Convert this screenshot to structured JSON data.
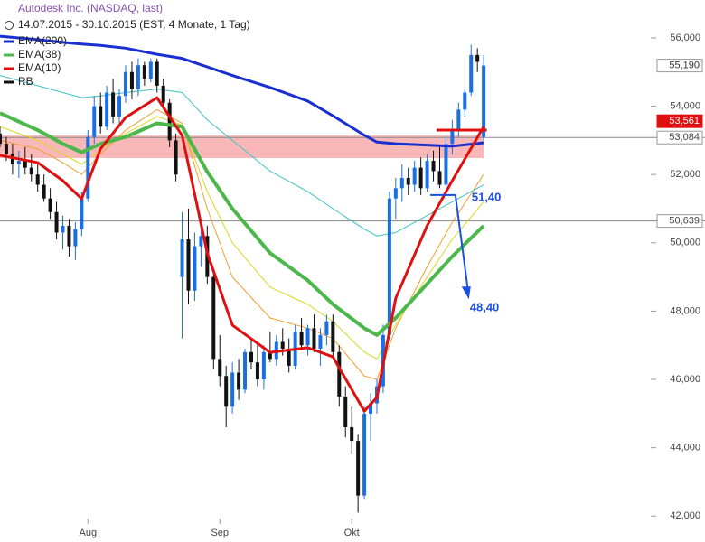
{
  "chart_data": {
    "type": "candlestick",
    "title": "Autodesk Inc. (NASDAQ, last)",
    "subtitle": "14.07.2015 - 30.10.2015 (EST, 4 Monate, 1 Tag)",
    "up_color": "#1a6fe6",
    "down_color": "#111111",
    "candles_name": "RB",
    "candles": [
      [
        53.2,
        53.4,
        52.8,
        52.9
      ],
      [
        52.9,
        53.1,
        52.4,
        52.6
      ],
      [
        52.6,
        52.9,
        52.0,
        52.3
      ],
      [
        52.3,
        52.7,
        51.9,
        52.4
      ],
      [
        52.4,
        52.8,
        52.0,
        52.2
      ],
      [
        52.2,
        52.6,
        51.8,
        52.0
      ],
      [
        52.0,
        52.3,
        51.5,
        51.7
      ],
      [
        51.7,
        52.0,
        51.2,
        51.3
      ],
      [
        51.3,
        51.6,
        50.7,
        50.9
      ],
      [
        50.9,
        51.2,
        50.1,
        50.3
      ],
      [
        50.3,
        50.8,
        49.8,
        50.5
      ],
      [
        50.5,
        50.7,
        49.6,
        49.9
      ],
      [
        49.9,
        50.6,
        49.5,
        50.4
      ],
      [
        50.4,
        51.5,
        50.2,
        51.3
      ],
      [
        51.3,
        53.3,
        51.2,
        53.1
      ],
      [
        53.1,
        54.3,
        52.9,
        54.0
      ],
      [
        54.0,
        54.4,
        53.2,
        53.4
      ],
      [
        53.4,
        54.6,
        53.3,
        54.4
      ],
      [
        54.4,
        54.8,
        53.5,
        53.7
      ],
      [
        53.7,
        54.5,
        53.4,
        54.3
      ],
      [
        54.3,
        55.2,
        54.1,
        55.0
      ],
      [
        55.0,
        55.3,
        54.2,
        54.5
      ],
      [
        54.5,
        55.4,
        54.3,
        55.2
      ],
      [
        55.2,
        55.3,
        54.6,
        54.8
      ],
      [
        54.8,
        55.4,
        54.7,
        55.3
      ],
      [
        55.3,
        55.4,
        54.4,
        54.6
      ],
      [
        54.6,
        54.8,
        53.9,
        54.1
      ],
      [
        54.1,
        54.2,
        52.8,
        53.0
      ],
      [
        53.0,
        53.2,
        51.8,
        52.0
      ],
      [
        49.0,
        50.9,
        47.2,
        50.1
      ],
      [
        50.1,
        51.0,
        48.2,
        48.6
      ],
      [
        48.6,
        50.3,
        48.3,
        49.9
      ],
      [
        49.9,
        50.6,
        49.3,
        50.2
      ],
      [
        50.2,
        50.5,
        48.8,
        49.0
      ],
      [
        49.0,
        49.2,
        46.3,
        46.6
      ],
      [
        46.6,
        47.3,
        45.8,
        46.1
      ],
      [
        46.1,
        46.4,
        44.6,
        45.2
      ],
      [
        45.2,
        46.5,
        45.0,
        46.2
      ],
      [
        46.2,
        46.6,
        45.4,
        45.7
      ],
      [
        45.7,
        46.9,
        45.6,
        46.8
      ],
      [
        46.8,
        47.2,
        46.3,
        46.5
      ],
      [
        46.5,
        47.1,
        45.8,
        46.0
      ],
      [
        46.0,
        47.0,
        45.7,
        46.8
      ],
      [
        46.8,
        47.4,
        46.5,
        46.6
      ],
      [
        46.6,
        47.3,
        46.4,
        47.1
      ],
      [
        47.1,
        47.5,
        46.7,
        46.9
      ],
      [
        46.9,
        47.2,
        46.2,
        46.4
      ],
      [
        46.4,
        47.6,
        46.3,
        47.4
      ],
      [
        47.4,
        47.8,
        46.9,
        47.0
      ],
      [
        47.0,
        47.6,
        46.7,
        47.5
      ],
      [
        47.5,
        47.9,
        46.8,
        46.9
      ],
      [
        46.9,
        47.5,
        46.4,
        47.3
      ],
      [
        47.3,
        47.9,
        47.0,
        47.7
      ],
      [
        47.7,
        47.9,
        46.6,
        46.8
      ],
      [
        46.8,
        47.0,
        45.2,
        45.5
      ],
      [
        45.5,
        45.8,
        44.3,
        44.6
      ],
      [
        44.6,
        45.2,
        43.8,
        44.2
      ],
      [
        44.2,
        44.4,
        42.1,
        42.6
      ],
      [
        42.6,
        45.2,
        42.5,
        45.0
      ],
      [
        45.0,
        45.6,
        44.2,
        45.3
      ],
      [
        45.3,
        46.0,
        45.0,
        45.8
      ],
      [
        45.8,
        47.6,
        45.6,
        47.3
      ],
      [
        47.3,
        51.5,
        47.2,
        51.3
      ],
      [
        51.3,
        51.9,
        50.7,
        51.6
      ],
      [
        51.6,
        52.3,
        51.2,
        51.9
      ],
      [
        51.9,
        52.2,
        51.4,
        51.7
      ],
      [
        51.7,
        52.4,
        51.5,
        52.2
      ],
      [
        52.2,
        52.5,
        51.4,
        51.6
      ],
      [
        51.6,
        52.6,
        51.5,
        52.4
      ],
      [
        52.4,
        52.7,
        51.8,
        52.1
      ],
      [
        52.1,
        52.8,
        51.6,
        51.7
      ],
      [
        51.7,
        53.1,
        51.6,
        52.9
      ],
      [
        52.9,
        53.6,
        52.6,
        53.3
      ],
      [
        53.3,
        54.1,
        53.1,
        53.9
      ],
      [
        53.9,
        54.5,
        53.7,
        54.4
      ],
      [
        54.4,
        55.8,
        54.3,
        55.5
      ],
      [
        55.5,
        55.7,
        55.0,
        55.3
      ],
      [
        53.1,
        55.5,
        53.0,
        55.19
      ]
    ],
    "x": [
      0,
      6,
      10,
      13,
      16,
      20,
      25,
      29,
      33,
      37,
      43,
      49,
      53,
      58,
      60,
      63,
      68,
      72,
      77
    ],
    "series": [
      {
        "name": "EMA(200)",
        "color": "#1a2fd0",
        "width": 3,
        "values": [
          56.05,
          55.95,
          55.87,
          55.82,
          55.78,
          55.7,
          55.52,
          55.4,
          55.15,
          54.9,
          54.55,
          54.15,
          53.72,
          53.15,
          52.95,
          52.9,
          52.86,
          52.83,
          52.93
        ]
      },
      {
        "name": "EMA(38)",
        "color": "#4cb84c",
        "width": 4,
        "values": [
          53.8,
          53.3,
          52.9,
          52.65,
          52.9,
          53.1,
          53.5,
          53.4,
          52.08,
          51.0,
          49.7,
          48.9,
          48.2,
          47.5,
          47.3,
          47.8,
          48.8,
          49.6,
          50.5
        ]
      },
      {
        "name": "EMA(10)",
        "color": "#e01010",
        "width": 3,
        "values": [
          52.56,
          52.35,
          51.82,
          51.29,
          52.75,
          53.67,
          54.25,
          53.14,
          49.7,
          47.59,
          46.79,
          46.93,
          46.66,
          45.07,
          45.47,
          48.38,
          50.5,
          51.82,
          53.4
        ]
      }
    ],
    "ribbon": [
      {
        "color": "#f0a030",
        "values": [
          53.0,
          52.75,
          52.35,
          52.0,
          52.6,
          53.3,
          53.9,
          53.5,
          51.0,
          49.0,
          47.8,
          47.5,
          47.2,
          46.1,
          46.0,
          47.5,
          49.3,
          50.6,
          52.0
        ]
      },
      {
        "color": "#d8d820",
        "values": [
          53.4,
          53.0,
          52.6,
          52.3,
          52.75,
          53.2,
          53.7,
          53.45,
          51.5,
          50.0,
          48.7,
          48.2,
          47.7,
          46.8,
          46.6,
          47.6,
          49.0,
          50.1,
          51.2
        ]
      },
      {
        "color": "#40c0c8",
        "values": [
          54.9,
          54.6,
          54.4,
          54.25,
          54.3,
          54.4,
          54.5,
          54.4,
          53.6,
          53.0,
          52.1,
          51.5,
          51.0,
          50.4,
          50.2,
          50.3,
          50.8,
          51.2,
          51.7
        ]
      }
    ],
    "xlim": [
      0,
      103.6
    ],
    "xticks": [
      {
        "value": 14,
        "label": "Aug"
      },
      {
        "value": 35,
        "label": "Sep"
      },
      {
        "value": 56,
        "label": "Okt"
      }
    ],
    "ylim": [
      41.24,
      57.11
    ],
    "yticks": [
      {
        "value": 42,
        "label": "42,000"
      },
      {
        "value": 44,
        "label": "44,000"
      },
      {
        "value": 46,
        "label": "46,000"
      },
      {
        "value": 48,
        "label": "48,000"
      },
      {
        "value": 50,
        "label": "50,000"
      },
      {
        "value": 52,
        "label": "52,000"
      },
      {
        "value": 54,
        "label": "54,000"
      },
      {
        "value": 56,
        "label": "56,000"
      }
    ],
    "zone": {
      "color": "#f5a0a0",
      "range": [
        52.48,
        53.14
      ],
      "x": [
        0,
        77
      ]
    },
    "levels": [
      {
        "value": 53.084,
        "label": "53,084"
      },
      {
        "value": 50.639,
        "label": "50,639"
      }
    ],
    "price_labels": [
      {
        "value": 55.19,
        "label": "55,190",
        "color": "#ffffff",
        "text_color": "#333333"
      },
      {
        "value": 53.561,
        "label": "53,561",
        "color": "#e01010",
        "text_color": "#ffffff"
      }
    ],
    "target_line": {
      "value": 53.3,
      "x": [
        69.5,
        77.5
      ],
      "color": "#e01010"
    },
    "arrow": {
      "color": "#1a4fe0",
      "x": [
        68.5,
        72.5,
        74.5
      ],
      "from": {
        "value": 51.4,
        "label": "51,40"
      },
      "to": {
        "value": 48.4,
        "label": "48,40"
      }
    }
  }
}
